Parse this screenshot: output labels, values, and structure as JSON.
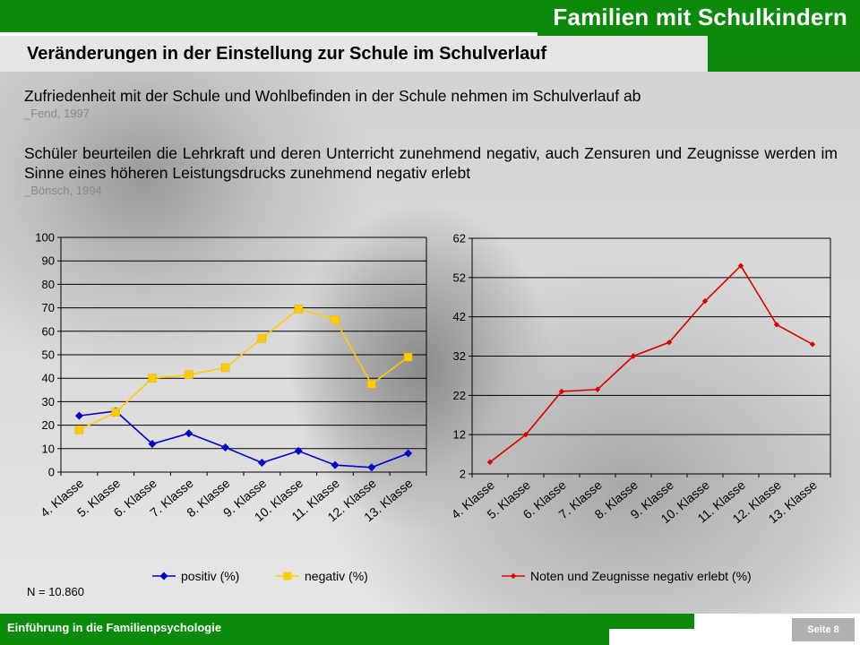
{
  "header": {
    "brand_title": "Familien mit Schulkindern",
    "section_title": "Veränderungen in der Einstellung zur Schule im Schulverlauf"
  },
  "body": {
    "para1": "Zufriedenheit mit der Schule und Wohlbefinden in der Schule nehmen im Schulverlauf ab",
    "cite1": "_Fend, 1997",
    "para2": "Schüler beurteilen die Lehrkraft und deren Unterricht zunehmend negativ, auch Zensuren und Zeugnisse werden im Sinne eines höheren Leistungsdrucks zunehmend negativ erlebt",
    "cite2": "_Bönsch, 1994",
    "n_note": "N = 10.860"
  },
  "footer": {
    "course": "Einführung in die Familienpsychologie",
    "page": "Seite 8"
  },
  "colors": {
    "green": "#0b8a0b",
    "positive": "#0000cc",
    "negative": "#ffcc00",
    "grades": "#dd0000"
  },
  "chart_data": [
    {
      "type": "line",
      "categories": [
        "4. Klasse",
        "5. Klasse",
        "6. Klasse",
        "7. Klasse",
        "8. Klasse",
        "9. Klasse",
        "10. Klasse",
        "11. Klasse",
        "12. Klasse",
        "13. Klasse"
      ],
      "series": [
        {
          "name": "positiv (%)",
          "values": [
            24,
            26,
            12,
            16.5,
            10.5,
            4,
            9,
            3,
            2,
            8
          ],
          "color": "#0000cc",
          "marker": "diamond"
        },
        {
          "name": "negativ (%)",
          "values": [
            18,
            25.5,
            40,
            41.5,
            44.5,
            57,
            69.5,
            65,
            37.5,
            49
          ],
          "color": "#ffcc00",
          "marker": "square"
        }
      ],
      "ylim": [
        0,
        100
      ],
      "yticks": [
        "0",
        "10",
        "20",
        "30",
        "40",
        "50",
        "60",
        "70",
        "80",
        "90",
        "100"
      ],
      "grid": true,
      "legend": "bottom"
    },
    {
      "type": "line",
      "categories": [
        "4. Klasse",
        "5. Klasse",
        "6. Klasse",
        "7. Klasse",
        "8. Klasse",
        "9. Klasse",
        "10. Klasse",
        "11. Klasse",
        "12. Klasse",
        "13. Klasse"
      ],
      "series": [
        {
          "name": "Noten und Zeugnisse negativ erlebt (%)",
          "values": [
            5,
            12,
            23,
            23.5,
            32,
            35.5,
            46,
            55,
            40,
            35
          ],
          "color": "#dd0000",
          "marker": "diamond"
        }
      ],
      "ylim": [
        2,
        62
      ],
      "yticks": [
        "2",
        "12",
        "22",
        "32",
        "42",
        "52",
        "62"
      ],
      "grid": true,
      "legend": "bottom"
    }
  ]
}
